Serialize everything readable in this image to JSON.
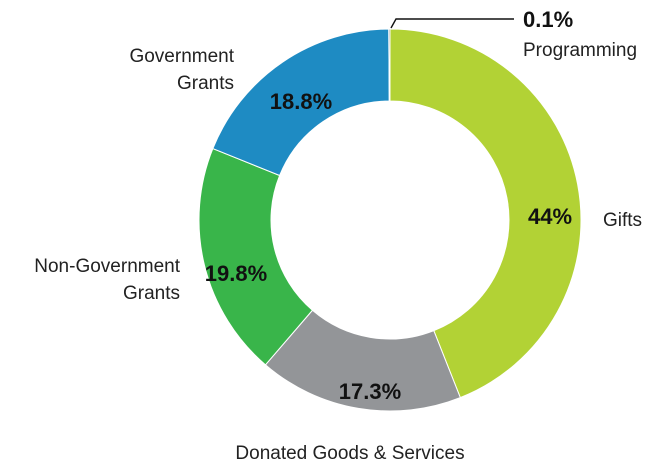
{
  "chart_data": {
    "type": "pie",
    "donut": true,
    "title": "",
    "slices": [
      {
        "label": "Gifts",
        "value": 44,
        "display": "44%",
        "color": "#b2d235"
      },
      {
        "label": "Donated Goods & Services",
        "value": 17.3,
        "display": "17.3%",
        "color": "#939598"
      },
      {
        "label": "Non-Government Grants",
        "value": 19.8,
        "display": "19.8%",
        "color": "#39b54a"
      },
      {
        "label": "Government Grants",
        "value": 18.8,
        "display": "18.8%",
        "color": "#1e8bc3"
      },
      {
        "label": "Programming",
        "value": 0.1,
        "display": "0.1%",
        "color": "#1a1a1a"
      }
    ]
  }
}
